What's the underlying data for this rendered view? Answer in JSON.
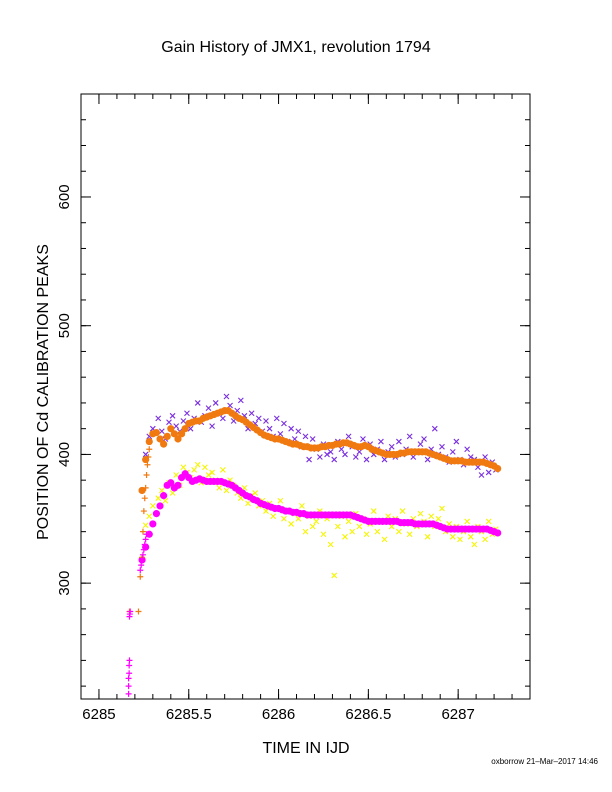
{
  "chart_data": {
    "type": "scatter",
    "title": "Gain History of JMX1, revolution 1794",
    "xlabel": "TIME IN IJD",
    "ylabel": "POSITION OF Cd CALIBRATION PEAKS",
    "xlim": [
      6284.9,
      6287.4
    ],
    "ylim": [
      210,
      680
    ],
    "xticks": [
      6285,
      6285.5,
      6286,
      6286.5,
      6287
    ],
    "xtick_labels": [
      "6285",
      "6285.5",
      "6286",
      "6286.5",
      "6287"
    ],
    "yticks": [
      300,
      400,
      500,
      600
    ],
    "ytick_labels": [
      "300",
      "400",
      "500",
      "600"
    ],
    "grid": false,
    "colors": {
      "raw_high": "#7a2fe0",
      "fit_high": "#f07a10",
      "raw_low": "#f5f500",
      "fit_low": "#ff00ff",
      "axes": "#000000"
    },
    "series": [
      {
        "marker": "x",
        "color": "#7a2fe0",
        "x": [
          6285.26,
          6285.28,
          6285.3,
          6285.33,
          6285.35,
          6285.37,
          6285.39,
          6285.41,
          6285.43,
          6285.45,
          6285.47,
          6285.49,
          6285.51,
          6285.53,
          6285.55,
          6285.57,
          6285.59,
          6285.61,
          6285.63,
          6285.65,
          6285.67,
          6285.69,
          6285.71,
          6285.73,
          6285.75,
          6285.77,
          6285.79,
          6285.81,
          6285.83,
          6285.85,
          6285.87,
          6285.89,
          6285.91,
          6285.93,
          6285.95,
          6285.97,
          6285.99,
          6286.01,
          6286.03,
          6286.05,
          6286.07,
          6286.09,
          6286.11,
          6286.13,
          6286.15,
          6286.17,
          6286.19,
          6286.21,
          6286.23,
          6286.25,
          6286.27,
          6286.29,
          6286.31,
          6286.33,
          6286.35,
          6286.37,
          6286.39,
          6286.41,
          6286.43,
          6286.45,
          6286.47,
          6286.49,
          6286.51,
          6286.53,
          6286.55,
          6286.57,
          6286.59,
          6286.61,
          6286.63,
          6286.65,
          6286.67,
          6286.69,
          6286.71,
          6286.73,
          6286.75,
          6286.77,
          6286.79,
          6286.81,
          6286.83,
          6286.85,
          6286.87,
          6286.89,
          6286.91,
          6286.93,
          6286.95,
          6286.97,
          6286.99,
          6287.01,
          6287.03,
          6287.05,
          6287.07,
          6287.09,
          6287.11,
          6287.13,
          6287.15,
          6287.17,
          6287.19,
          6287.21
        ],
        "y": [
          400,
          414,
          420,
          428,
          418,
          412,
          425,
          430,
          422,
          418,
          426,
          432,
          420,
          428,
          440,
          425,
          430,
          436,
          422,
          440,
          432,
          428,
          445,
          438,
          426,
          434,
          442,
          430,
          420,
          432,
          424,
          428,
          418,
          426,
          420,
          414,
          428,
          416,
          424,
          410,
          420,
          412,
          418,
          406,
          414,
          396,
          412,
          404,
          398,
          408,
          400,
          402,
          396,
          410,
          404,
          400,
          414,
          406,
          398,
          402,
          412,
          396,
          408,
          400,
          404,
          410,
          396,
          402,
          406,
          398,
          410,
          400,
          404,
          414,
          398,
          402,
          408,
          412,
          396,
          404,
          420,
          400,
          406,
          398,
          394,
          402,
          410,
          396,
          392,
          404,
          398,
          396,
          390,
          384,
          398,
          386,
          394,
          388
        ]
      },
      {
        "marker": "x",
        "color": "#f5f500",
        "x": [
          6285.26,
          6285.28,
          6285.3,
          6285.33,
          6285.35,
          6285.37,
          6285.39,
          6285.41,
          6285.43,
          6285.45,
          6285.47,
          6285.49,
          6285.51,
          6285.53,
          6285.55,
          6285.57,
          6285.59,
          6285.61,
          6285.63,
          6285.65,
          6285.67,
          6285.69,
          6285.71,
          6285.73,
          6285.75,
          6285.77,
          6285.79,
          6285.81,
          6285.83,
          6285.85,
          6285.87,
          6285.89,
          6285.91,
          6285.93,
          6285.95,
          6285.97,
          6285.99,
          6286.01,
          6286.03,
          6286.05,
          6286.07,
          6286.09,
          6286.11,
          6286.13,
          6286.15,
          6286.17,
          6286.19,
          6286.21,
          6286.23,
          6286.25,
          6286.27,
          6286.29,
          6286.31,
          6286.33,
          6286.35,
          6286.37,
          6286.39,
          6286.41,
          6286.43,
          6286.45,
          6286.47,
          6286.49,
          6286.51,
          6286.53,
          6286.55,
          6286.57,
          6286.59,
          6286.61,
          6286.63,
          6286.65,
          6286.67,
          6286.69,
          6286.71,
          6286.73,
          6286.75,
          6286.77,
          6286.79,
          6286.81,
          6286.83,
          6286.85,
          6286.87,
          6286.89,
          6286.91,
          6286.93,
          6286.95,
          6286.97,
          6286.99,
          6287.01,
          6287.03,
          6287.05,
          6287.07,
          6287.09,
          6287.11,
          6287.13,
          6287.15,
          6287.17,
          6287.19,
          6287.21
        ],
        "y": [
          345,
          352,
          360,
          366,
          372,
          364,
          378,
          370,
          384,
          376,
          390,
          386,
          382,
          388,
          392,
          378,
          390,
          384,
          386,
          380,
          374,
          388,
          372,
          380,
          376,
          370,
          366,
          374,
          362,
          368,
          370,
          360,
          364,
          356,
          362,
          352,
          358,
          364,
          350,
          356,
          346,
          354,
          350,
          360,
          340,
          352,
          344,
          348,
          356,
          338,
          350,
          330,
          306,
          344,
          352,
          336,
          348,
          340,
          354,
          344,
          350,
          338,
          346,
          356,
          340,
          348,
          334,
          352,
          344,
          350,
          340,
          356,
          346,
          338,
          350,
          344,
          354,
          348,
          336,
          352,
          344,
          350,
          358,
          340,
          346,
          336,
          344,
          334,
          340,
          348,
          336,
          330,
          344,
          340,
          334,
          348,
          338,
          342
        ]
      },
      {
        "marker": "dot",
        "color": "#f07a10",
        "x": [
          6285.24,
          6285.26,
          6285.28,
          6285.3,
          6285.32,
          6285.34,
          6285.36,
          6285.38,
          6285.4,
          6285.42,
          6285.44,
          6285.46,
          6285.48,
          6285.5,
          6285.52,
          6285.54,
          6285.56,
          6285.58,
          6285.6,
          6285.62,
          6285.64,
          6285.66,
          6285.68,
          6285.7,
          6285.72,
          6285.74,
          6285.76,
          6285.78,
          6285.8,
          6285.82,
          6285.84,
          6285.86,
          6285.88,
          6285.9,
          6285.92,
          6285.94,
          6285.96,
          6285.98,
          6286.0,
          6286.02,
          6286.04,
          6286.06,
          6286.08,
          6286.1,
          6286.12,
          6286.14,
          6286.16,
          6286.18,
          6286.2,
          6286.22,
          6286.24,
          6286.26,
          6286.28,
          6286.3,
          6286.32,
          6286.34,
          6286.36,
          6286.38,
          6286.4,
          6286.42,
          6286.44,
          6286.46,
          6286.48,
          6286.5,
          6286.52,
          6286.54,
          6286.56,
          6286.58,
          6286.6,
          6286.62,
          6286.64,
          6286.66,
          6286.68,
          6286.7,
          6286.72,
          6286.74,
          6286.76,
          6286.78,
          6286.8,
          6286.82,
          6286.84,
          6286.86,
          6286.88,
          6286.9,
          6286.92,
          6286.94,
          6286.96,
          6286.98,
          6287.0,
          6287.02,
          6287.04,
          6287.06,
          6287.08,
          6287.1,
          6287.12,
          6287.14,
          6287.16,
          6287.18,
          6287.2,
          6287.22
        ],
        "y": [
          372,
          396,
          410,
          416,
          417,
          412,
          408,
          414,
          420,
          416,
          412,
          416,
          420,
          424,
          425,
          426,
          426,
          428,
          429,
          430,
          431,
          432,
          433,
          434,
          434,
          432,
          430,
          428,
          427,
          425,
          423,
          421,
          419,
          417,
          415,
          414,
          413,
          412,
          412,
          411,
          410,
          409,
          408,
          408,
          407,
          406,
          406,
          405,
          405,
          405,
          406,
          406,
          407,
          407,
          408,
          408,
          409,
          409,
          408,
          407,
          406,
          406,
          407,
          406,
          404,
          403,
          402,
          401,
          400,
          400,
          400,
          400,
          401,
          401,
          402,
          402,
          402,
          402,
          402,
          402,
          401,
          400,
          399,
          398,
          397,
          396,
          395,
          395,
          395,
          395,
          394,
          394,
          394,
          394,
          394,
          394,
          393,
          392,
          391,
          389
        ]
      },
      {
        "marker": "dot",
        "color": "#ff00ff",
        "x": [
          6285.24,
          6285.26,
          6285.28,
          6285.3,
          6285.32,
          6285.34,
          6285.36,
          6285.38,
          6285.4,
          6285.42,
          6285.44,
          6285.46,
          6285.48,
          6285.5,
          6285.52,
          6285.54,
          6285.56,
          6285.58,
          6285.6,
          6285.62,
          6285.64,
          6285.66,
          6285.68,
          6285.7,
          6285.72,
          6285.74,
          6285.76,
          6285.78,
          6285.8,
          6285.82,
          6285.84,
          6285.86,
          6285.88,
          6285.9,
          6285.92,
          6285.94,
          6285.96,
          6285.98,
          6286.0,
          6286.02,
          6286.04,
          6286.06,
          6286.08,
          6286.1,
          6286.12,
          6286.14,
          6286.16,
          6286.18,
          6286.2,
          6286.22,
          6286.24,
          6286.26,
          6286.28,
          6286.3,
          6286.32,
          6286.34,
          6286.36,
          6286.38,
          6286.4,
          6286.42,
          6286.44,
          6286.46,
          6286.48,
          6286.5,
          6286.52,
          6286.54,
          6286.56,
          6286.58,
          6286.6,
          6286.62,
          6286.64,
          6286.66,
          6286.68,
          6286.7,
          6286.72,
          6286.74,
          6286.76,
          6286.78,
          6286.8,
          6286.82,
          6286.84,
          6286.86,
          6286.88,
          6286.9,
          6286.92,
          6286.94,
          6286.96,
          6286.98,
          6287.0,
          6287.02,
          6287.04,
          6287.06,
          6287.08,
          6287.1,
          6287.12,
          6287.14,
          6287.16,
          6287.18,
          6287.2,
          6287.22
        ],
        "y": [
          318,
          328,
          338,
          346,
          354,
          360,
          368,
          376,
          378,
          374,
          376,
          382,
          385,
          382,
          379,
          380,
          381,
          380,
          379,
          379,
          379,
          379,
          379,
          378,
          377,
          376,
          374,
          372,
          370,
          368,
          367,
          365,
          364,
          362,
          361,
          360,
          359,
          358,
          358,
          357,
          356,
          356,
          355,
          355,
          354,
          354,
          353,
          353,
          353,
          353,
          353,
          353,
          353,
          353,
          353,
          353,
          353,
          353,
          353,
          352,
          351,
          350,
          349,
          348,
          348,
          348,
          348,
          348,
          348,
          348,
          348,
          348,
          347,
          347,
          347,
          347,
          346,
          346,
          346,
          346,
          346,
          346,
          345,
          344,
          343,
          342,
          342,
          342,
          342,
          342,
          342,
          342,
          342,
          342,
          342,
          342,
          342,
          341,
          340,
          339
        ]
      },
      {
        "marker": "plus",
        "color": "#f07a10",
        "x": [
          6285.17,
          6285.22,
          6285.23,
          6285.24,
          6285.245,
          6285.25,
          6285.255,
          6285.26,
          6285.265,
          6285.27,
          6285.275,
          6285.28
        ],
        "y": [
          278,
          278,
          305,
          320,
          340,
          356,
          366,
          374,
          384,
          392,
          398,
          404
        ]
      },
      {
        "marker": "plus",
        "color": "#ff00ff",
        "x": [
          6285.165,
          6285.165,
          6285.165,
          6285.168,
          6285.168,
          6285.17,
          6285.17,
          6285.172,
          6285.174,
          6285.23,
          6285.235,
          6285.24,
          6285.245,
          6285.25,
          6285.255,
          6285.26,
          6285.265
        ],
        "y": [
          214,
          220,
          226,
          230,
          236,
          240,
          274,
          276,
          278,
          310,
          314,
          318,
          322,
          326,
          330,
          334,
          338
        ]
      }
    ]
  },
  "footer": {
    "credit": "oxborrow 21–Mar–2017 14:46"
  }
}
